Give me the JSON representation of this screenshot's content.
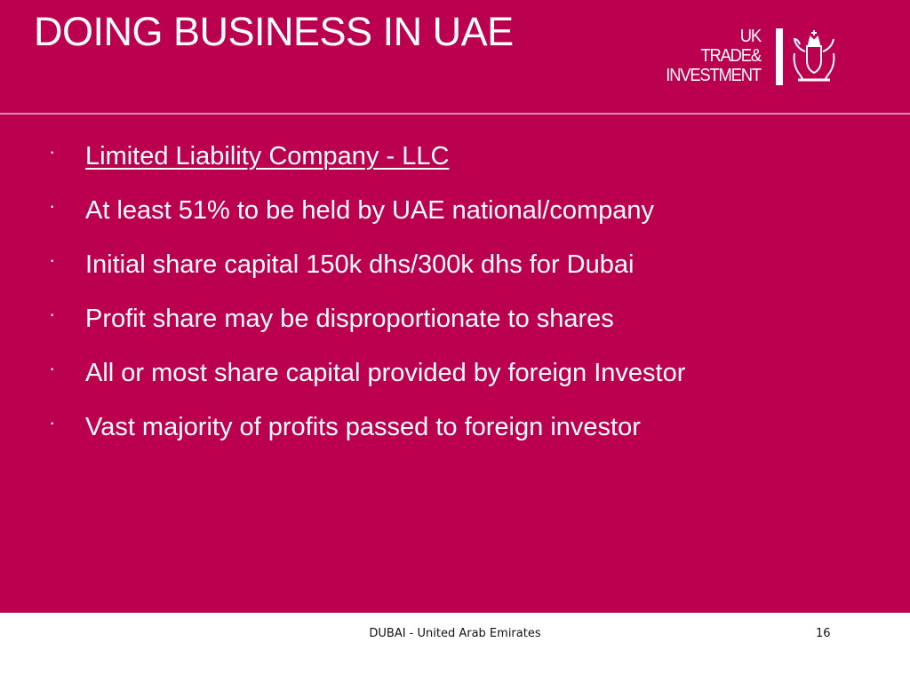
{
  "slide": {
    "title": "DOING BUSINESS IN UAE",
    "background_color": "#bc0050",
    "logo": {
      "lines": [
        "UK",
        "TRADE&",
        "INVESTMENT"
      ],
      "icon": "royal-coat-of-arms-icon"
    },
    "bullet_marker": "·",
    "bullets": [
      {
        "text": "Limited Liability Company - LLC",
        "underlined": true
      },
      {
        "text": "At least 51% to be held by UAE national/company"
      },
      {
        "text": "Initial share capital 150k dhs/300k dhs for Dubai"
      },
      {
        "text": "Profit share may be disproportionate to shares"
      },
      {
        "text": "All or most share capital provided by foreign Investor"
      },
      {
        "text": "Vast majority of profits passed to foreign investor"
      }
    ]
  },
  "footer": {
    "text": "DUBAI - United Arab Emirates",
    "page_number": "16"
  }
}
